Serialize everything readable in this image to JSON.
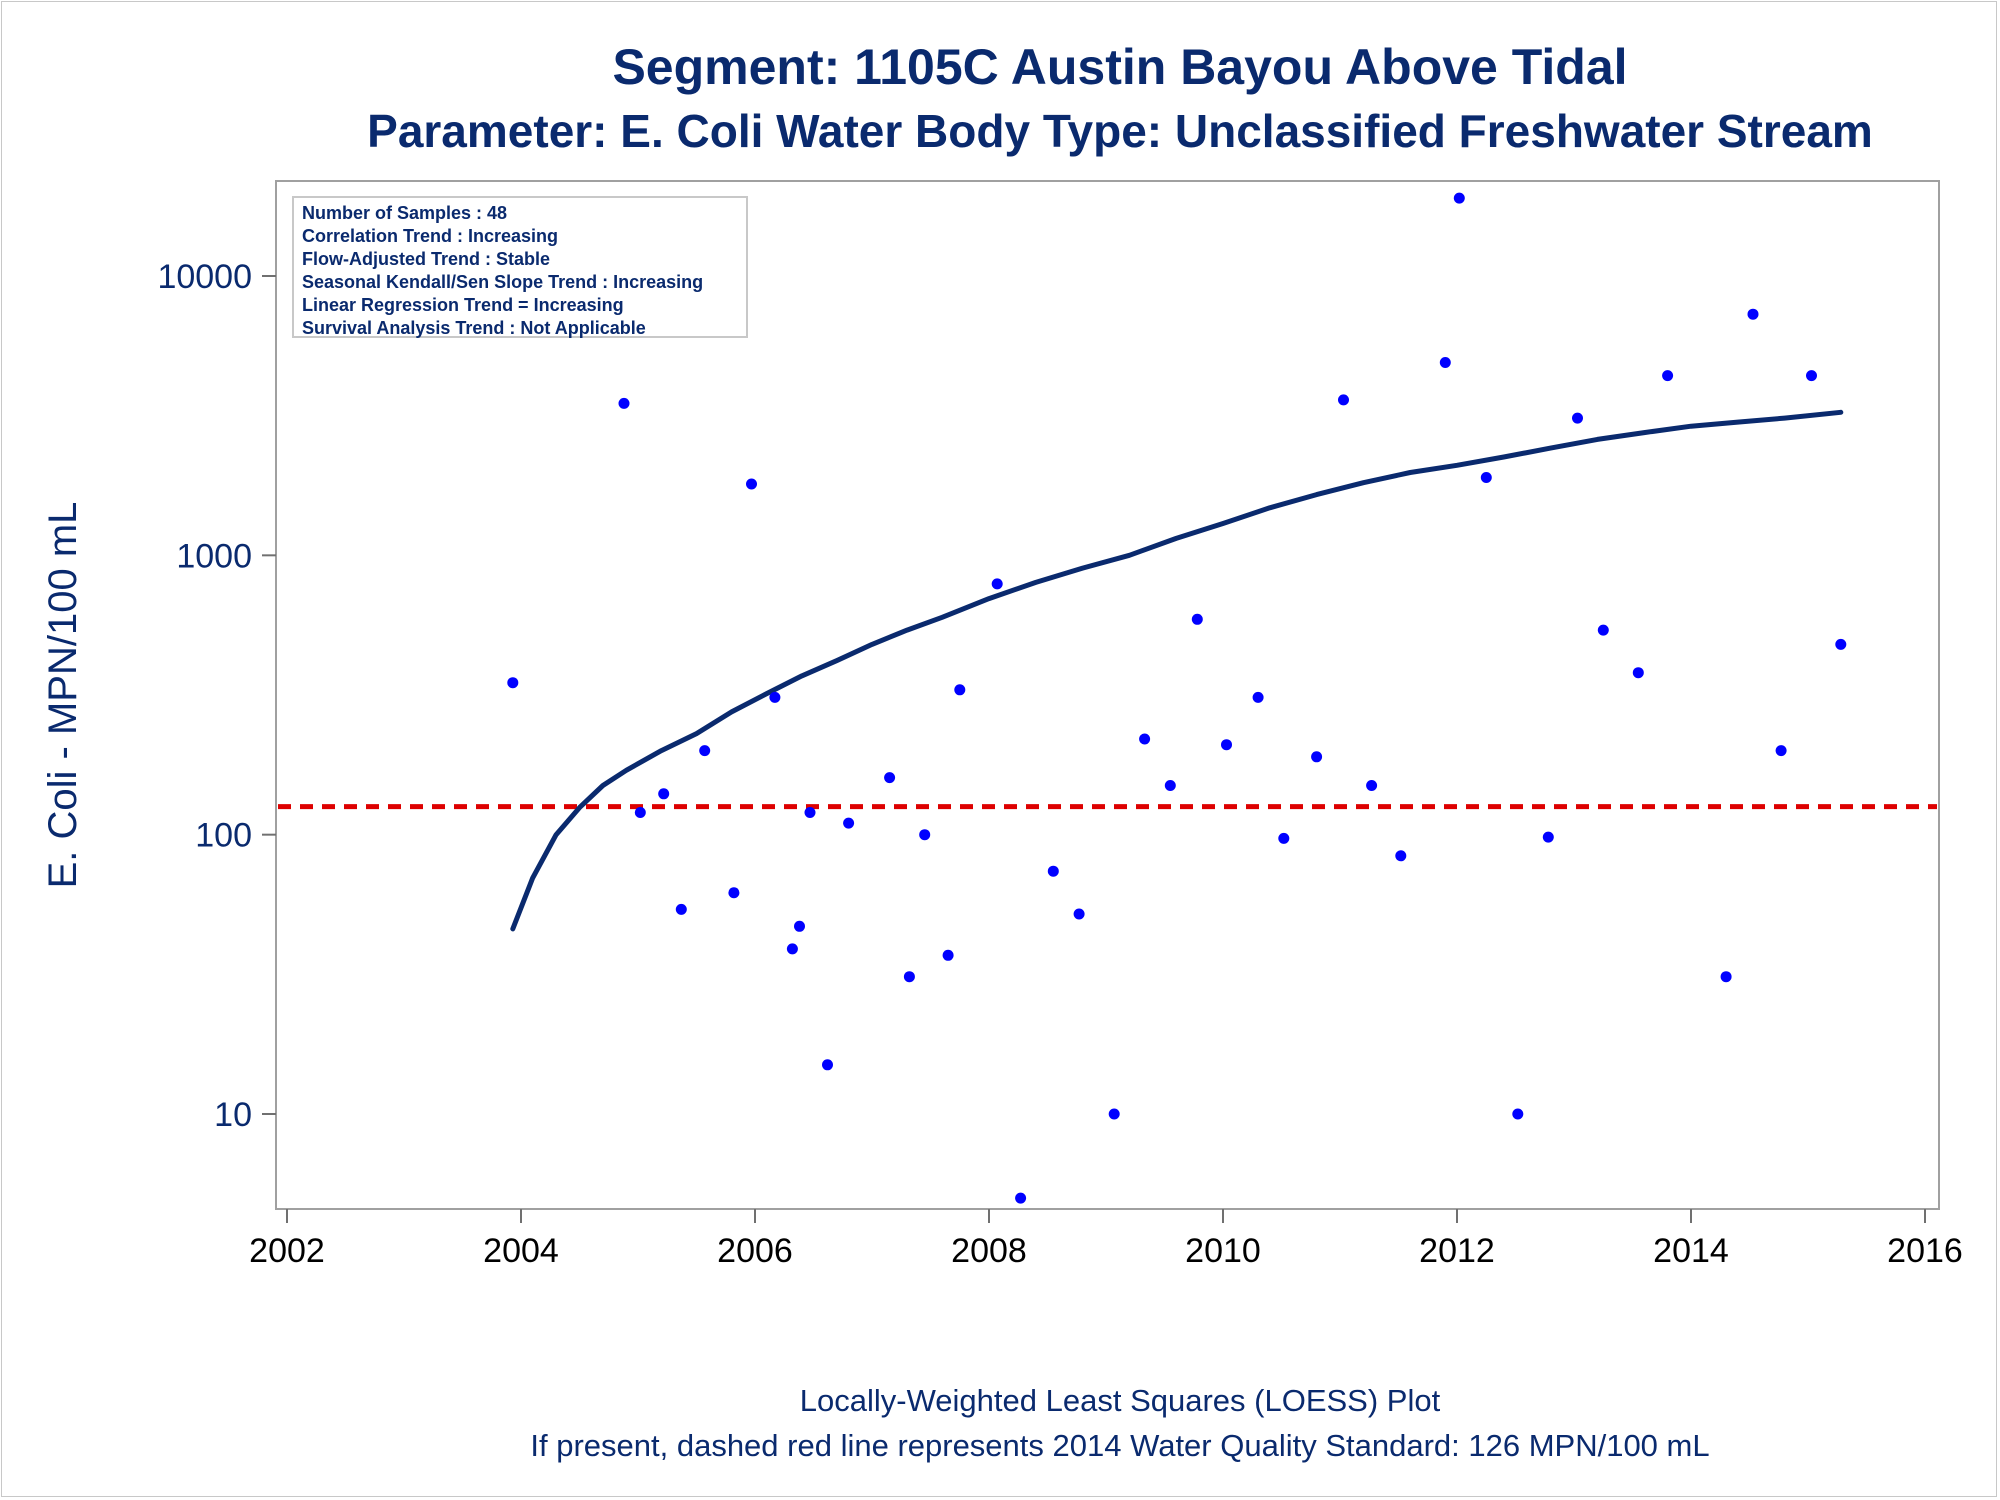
{
  "chart_data": {
    "type": "scatter",
    "title": "Segment: 1105C  Austin Bayou Above Tidal",
    "subtitle": "Parameter: E. Coli   Water Body Type: Unclassified Freshwater Stream",
    "xlabel": "",
    "ylabel": "E. Coli - MPN/100 mL",
    "xlim": [
      2002,
      2016
    ],
    "xticks": [
      "2002",
      "2004",
      "2006",
      "2008",
      "2010",
      "2012",
      "2014",
      "2016"
    ],
    "yscale": "log",
    "ylim": [
      4.6,
      22000
    ],
    "yticks": [
      "10",
      "100",
      "1000",
      "10000"
    ],
    "grid": false,
    "footnotes": [
      "Locally-Weighted Least Squares (LOESS) Plot",
      "If present, dashed red line represents 2014 Water Quality Standard: 126 MPN/100 mL"
    ],
    "stats_box": [
      "Number of Samples : 48",
      "Correlation Trend : Increasing",
      "Flow-Adjusted Trend : Stable",
      "Seasonal Kendall/Sen Slope Trend : Increasing",
      "Linear Regression Trend = Increasing",
      "Survival Analysis Trend : Not Applicable"
    ],
    "standard_line": {
      "value": 126,
      "color": "#dd0000"
    },
    "points_color": "#0000ff",
    "loess_color": "#0a2a6e",
    "points": [
      [
        2003.93,
        350
      ],
      [
        2004.88,
        3500
      ],
      [
        2005.02,
        120
      ],
      [
        2005.22,
        140
      ],
      [
        2005.37,
        54
      ],
      [
        2005.57,
        200
      ],
      [
        2005.82,
        62
      ],
      [
        2005.97,
        1800
      ],
      [
        2006.17,
        310
      ],
      [
        2006.32,
        39
      ],
      [
        2006.38,
        47
      ],
      [
        2006.47,
        120
      ],
      [
        2006.62,
        15
      ],
      [
        2006.8,
        110
      ],
      [
        2007.15,
        160
      ],
      [
        2007.32,
        31
      ],
      [
        2007.45,
        100
      ],
      [
        2007.65,
        37
      ],
      [
        2007.75,
        330
      ],
      [
        2008.07,
        790
      ],
      [
        2008.27,
        5
      ],
      [
        2008.55,
        74
      ],
      [
        2008.77,
        52
      ],
      [
        2009.07,
        10
      ],
      [
        2009.33,
        220
      ],
      [
        2009.55,
        150
      ],
      [
        2009.78,
        590
      ],
      [
        2010.03,
        210
      ],
      [
        2010.3,
        310
      ],
      [
        2010.52,
        97
      ],
      [
        2010.8,
        190
      ],
      [
        2011.03,
        3600
      ],
      [
        2011.27,
        150
      ],
      [
        2011.52,
        84
      ],
      [
        2011.9,
        4900
      ],
      [
        2012.02,
        19000
      ],
      [
        2012.25,
        1900
      ],
      [
        2012.52,
        10
      ],
      [
        2012.78,
        98
      ],
      [
        2013.03,
        3100
      ],
      [
        2013.25,
        540
      ],
      [
        2013.55,
        380
      ],
      [
        2013.8,
        4400
      ],
      [
        2014.3,
        31
      ],
      [
        2014.53,
        7300
      ],
      [
        2014.77,
        200
      ],
      [
        2015.03,
        4400
      ],
      [
        2015.28,
        480
      ]
    ],
    "loess": [
      [
        2003.93,
        46
      ],
      [
        2004.1,
        70
      ],
      [
        2004.3,
        100
      ],
      [
        2004.5,
        125
      ],
      [
        2004.7,
        150
      ],
      [
        2004.9,
        170
      ],
      [
        2005.2,
        200
      ],
      [
        2005.5,
        230
      ],
      [
        2005.8,
        275
      ],
      [
        2006.1,
        320
      ],
      [
        2006.4,
        370
      ],
      [
        2006.7,
        420
      ],
      [
        2007.0,
        480
      ],
      [
        2007.3,
        540
      ],
      [
        2007.6,
        600
      ],
      [
        2008.0,
        700
      ],
      [
        2008.4,
        800
      ],
      [
        2008.8,
        900
      ],
      [
        2009.2,
        1000
      ],
      [
        2009.6,
        1150
      ],
      [
        2010.0,
        1300
      ],
      [
        2010.4,
        1480
      ],
      [
        2010.8,
        1650
      ],
      [
        2011.2,
        1820
      ],
      [
        2011.6,
        1980
      ],
      [
        2012.0,
        2100
      ],
      [
        2012.4,
        2250
      ],
      [
        2012.8,
        2420
      ],
      [
        2013.2,
        2600
      ],
      [
        2013.6,
        2750
      ],
      [
        2014.0,
        2900
      ],
      [
        2014.4,
        3000
      ],
      [
        2014.8,
        3100
      ],
      [
        2015.28,
        3250
      ]
    ]
  }
}
